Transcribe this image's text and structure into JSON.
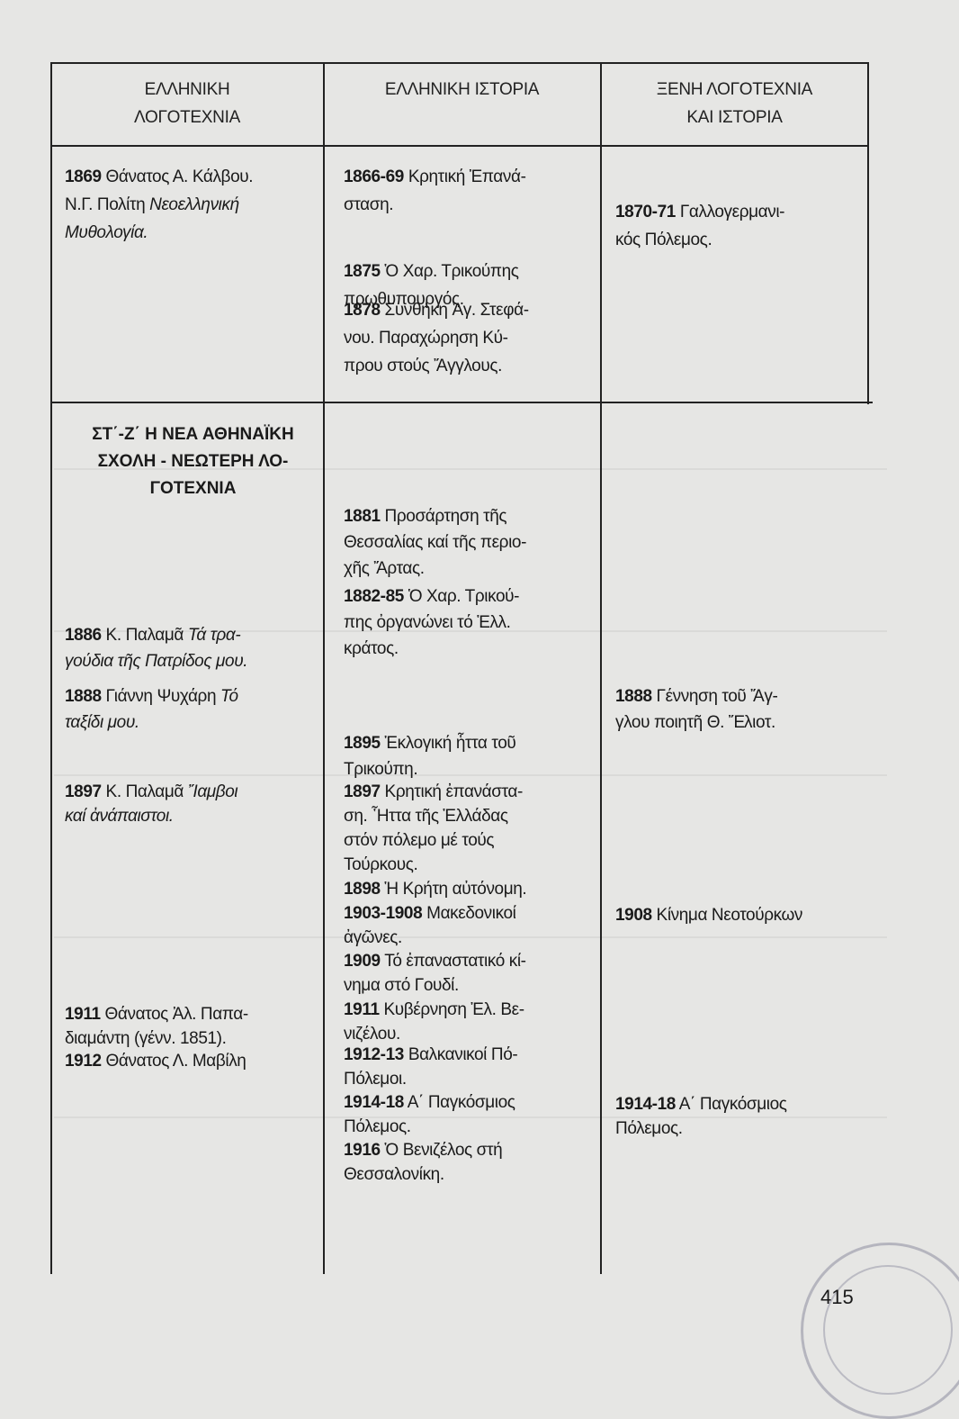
{
  "headers": [
    "ΕΛΛΗΝΙΚΗ\nΛΟΓΟΤΕΧΝΙΑ",
    "ΕΛΛΗΝΙΚΗ ΙΣΤΟΡΙΑ",
    "ΞΕΝΗ ΛΟΓΟΤΕΧΝΙΑ\nΚΑΙ ΙΣΤΟΡΙΑ"
  ],
  "section_heading": "ΣΤ΄-Ζ΄ Η ΝΕΑ ΑΘΗΝΑΪΚΗ\nΣΧΟΛΗ - ΝΕΩΤΕΡΗ ΛΟ-\nΓΟΤΕΧΝΙΑ",
  "columns": [
    [
      {
        "parts": [
          {
            "s": "b",
            "t": "1869"
          },
          {
            "s": "n",
            "t": " Θάνατος Α. Κάλβου.\nΝ.Γ. Πολίτη "
          },
          {
            "s": "i",
            "t": "Νεοελληνική\nΜυθολογία."
          }
        ]
      },
      {
        "parts": [
          {
            "s": "b",
            "t": "1886"
          },
          {
            "s": "n",
            "t": " Κ. Παλαμᾶ "
          },
          {
            "s": "i",
            "t": "Τά τρα-\nγούδια τῆς Πατρίδος μου."
          }
        ]
      },
      {
        "parts": [
          {
            "s": "b",
            "t": "1888"
          },
          {
            "s": "n",
            "t": " Γιάννη Ψυχάρη "
          },
          {
            "s": "i",
            "t": "Τό\nταξίδι μου."
          }
        ]
      },
      {
        "parts": [
          {
            "s": "b",
            "t": "1897"
          },
          {
            "s": "n",
            "t": " Κ. Παλαμᾶ "
          },
          {
            "s": "i",
            "t": "Ἴαμβοι\nκαί ἀνάπαιστοι."
          }
        ]
      },
      {
        "parts": [
          {
            "s": "b",
            "t": "1911"
          },
          {
            "s": "n",
            "t": " Θάνατος Ἀλ. Παπα-\nδιαμάντη (γένν. 1851)."
          }
        ]
      },
      {
        "parts": [
          {
            "s": "b",
            "t": "1912"
          },
          {
            "s": "n",
            "t": " Θάνατος Λ. Μαβίλη"
          }
        ]
      }
    ],
    [
      {
        "parts": [
          {
            "s": "b",
            "t": "1866-69"
          },
          {
            "s": "n",
            "t": " Κρητική Ἐπανά-\nσταση."
          }
        ]
      },
      {
        "parts": [
          {
            "s": "b",
            "t": "1875"
          },
          {
            "s": "n",
            "t": " Ὁ Χαρ. Τρικούπης\nπρωθυπουργός."
          }
        ]
      },
      {
        "parts": [
          {
            "s": "b",
            "t": "1878"
          },
          {
            "s": "n",
            "t": " Συνθήκη Ἁγ. Στεφά-\nνου. Παραχώρηση Κύ-\nπρου στούς Ἄγγλους."
          }
        ]
      },
      {
        "parts": [
          {
            "s": "b",
            "t": "1881"
          },
          {
            "s": "n",
            "t": " Προσάρτηση τῆς\nΘεσσαλίας καί τῆς περιο-\nχῆς Ἄρτας."
          }
        ]
      },
      {
        "parts": [
          {
            "s": "b",
            "t": "1882-85"
          },
          {
            "s": "n",
            "t": " Ὁ Χαρ. Τρικού-\nπης ὀργανώνει τό Ἑλλ.\nκράτος."
          }
        ]
      },
      {
        "parts": [
          {
            "s": "b",
            "t": "1895"
          },
          {
            "s": "n",
            "t": " Ἐκλογική ἧττα τοῦ\nΤρικούπη."
          }
        ]
      },
      {
        "parts": [
          {
            "s": "b",
            "t": "1897"
          },
          {
            "s": "n",
            "t": " Κρητική ἐπανάστα-\nση. Ἧττα τῆς Ἑλλάδας\nστόν πόλεμο μέ τούς\nΤούρκους."
          }
        ]
      },
      {
        "parts": [
          {
            "s": "b",
            "t": "1898"
          },
          {
            "s": "n",
            "t": " Ἡ Κρήτη αὐτόνομη."
          }
        ]
      },
      {
        "parts": [
          {
            "s": "b",
            "t": "1903-1908"
          },
          {
            "s": "n",
            "t": " Μακεδονικοί\nἀγῶνες."
          }
        ]
      },
      {
        "parts": [
          {
            "s": "b",
            "t": "1909"
          },
          {
            "s": "n",
            "t": " Τό ἐπαναστατικό κί-\nνημα στό Γουδί."
          }
        ]
      },
      {
        "parts": [
          {
            "s": "b",
            "t": "1911"
          },
          {
            "s": "n",
            "t": " Κυβέρνηση Ἐλ. Βε-\nνιζέλου."
          }
        ]
      },
      {
        "parts": [
          {
            "s": "b",
            "t": "1912-13"
          },
          {
            "s": "n",
            "t": " Βαλκανικοί Πό-\nΠόλεμοι."
          }
        ]
      },
      {
        "parts": [
          {
            "s": "b",
            "t": "1914-18"
          },
          {
            "s": "n",
            "t": " Α΄ Παγκόσμιος\nΠόλεμος."
          }
        ]
      },
      {
        "parts": [
          {
            "s": "b",
            "t": "1916"
          },
          {
            "s": "n",
            "t": " Ὁ Βενιζέλος στή\nΘεσσαλονίκη."
          }
        ]
      }
    ],
    [
      {
        "parts": [
          {
            "s": "b",
            "t": "1870-71"
          },
          {
            "s": "n",
            "t": "    Γαλλογερμανι-\nκός Πόλεμος."
          }
        ]
      },
      {
        "parts": [
          {
            "s": "b",
            "t": "1888"
          },
          {
            "s": "n",
            "t": " Γέννηση τοῦ Ἄγ-\nγλου ποιητῆ Θ. Ἔλιοτ."
          }
        ]
      },
      {
        "parts": [
          {
            "s": "b",
            "t": "1908"
          },
          {
            "s": "n",
            "t": " Κίνημα Νεοτούρκων"
          }
        ]
      },
      {
        "parts": [
          {
            "s": "b",
            "t": "1914-18"
          },
          {
            "s": "n",
            "t": " Α΄ Παγκόσμιος\nΠόλεμος."
          }
        ]
      }
    ]
  ],
  "page_number": "415"
}
